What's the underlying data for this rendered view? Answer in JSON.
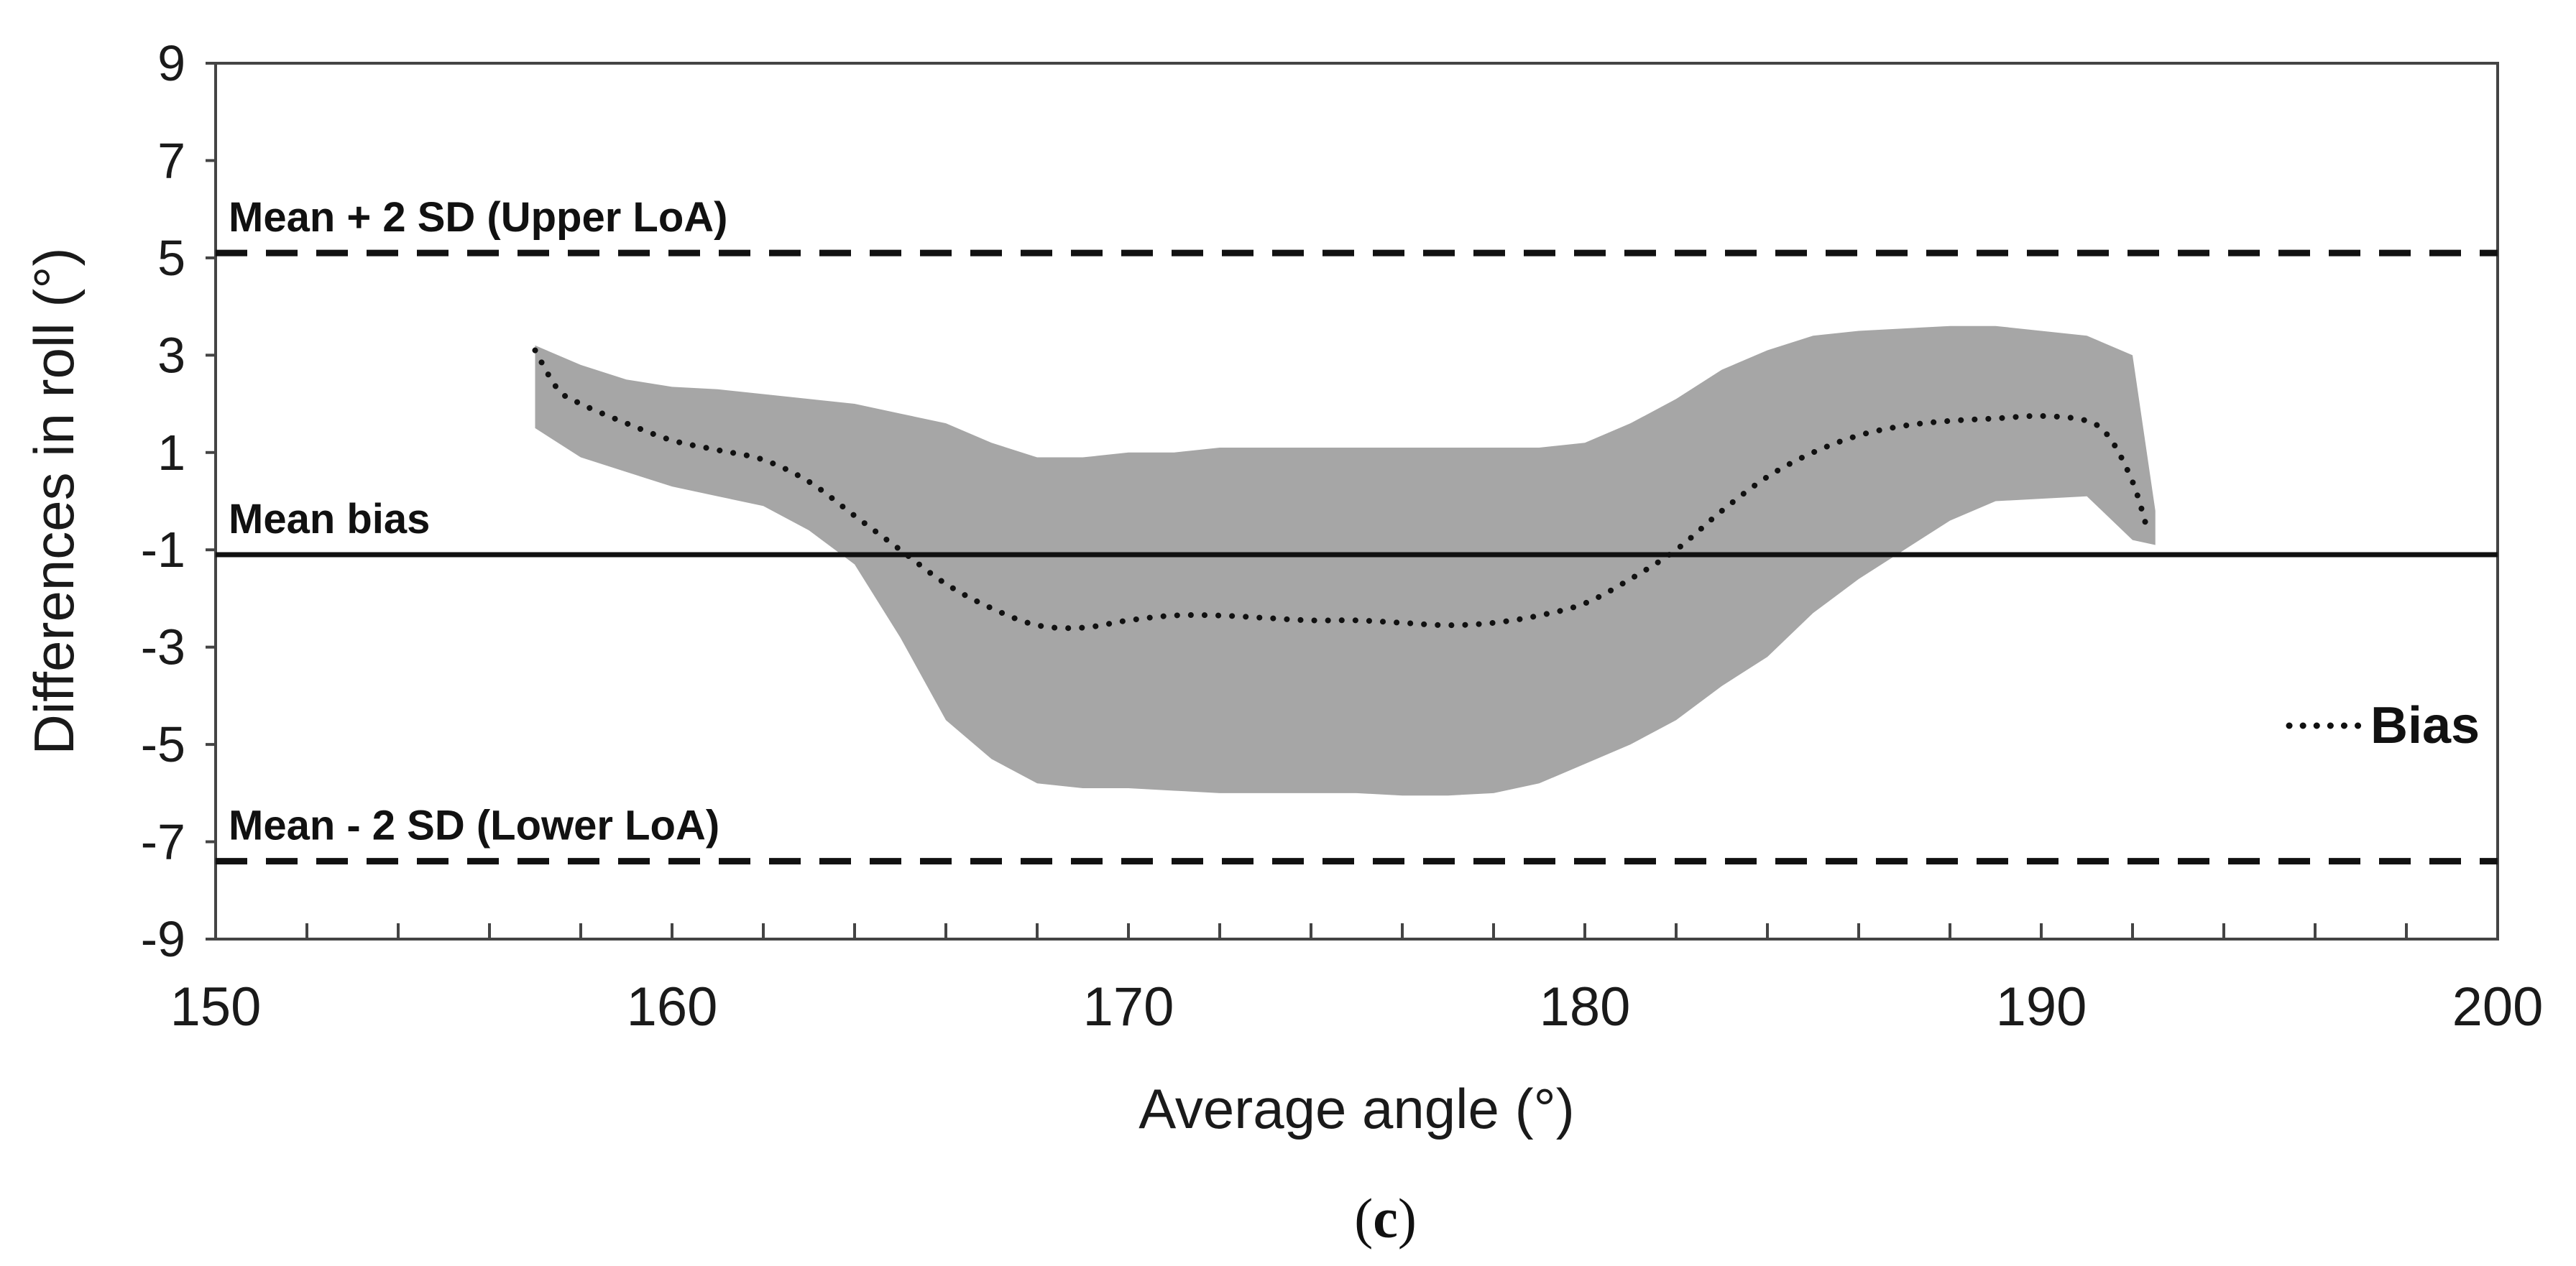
{
  "chart_data": {
    "type": "line",
    "title": "",
    "xlabel": "Average angle (°)",
    "ylabel": "Differences in roll (°)",
    "xlim": [
      150,
      200
    ],
    "ylim": [
      -9,
      9
    ],
    "x_ticks": [
      150,
      160,
      170,
      180,
      190,
      200
    ],
    "x_minor_step": 2,
    "y_ticks": [
      9,
      7,
      5,
      3,
      1,
      -1,
      -3,
      -5,
      -7,
      -9
    ],
    "grid": false,
    "reference_lines": [
      {
        "name": "upper-loa",
        "label": "Mean + 2 SD (Upper LoA)",
        "value": 5.1,
        "style": "dashed"
      },
      {
        "name": "mean-bias",
        "label": "Mean bias",
        "value": -1.1,
        "style": "solid"
      },
      {
        "name": "lower-loa",
        "label": "Mean - 2 SD (Lower LoA)",
        "value": -7.4,
        "style": "dashed"
      }
    ],
    "band": {
      "description": "confidence band around bias",
      "color": "#a6a6a6",
      "x": [
        157,
        158,
        159,
        160,
        161,
        162,
        163,
        164,
        165,
        166,
        167,
        168,
        169,
        170,
        171,
        172,
        173,
        174,
        175,
        176,
        177,
        178,
        179,
        180,
        181,
        182,
        183,
        184,
        185,
        186,
        187,
        188,
        189,
        190,
        191,
        192,
        192.5
      ],
      "upper": [
        3.2,
        2.8,
        2.5,
        2.35,
        2.3,
        2.2,
        2.1,
        2.0,
        1.8,
        1.6,
        1.2,
        0.9,
        0.9,
        1.0,
        1.0,
        1.1,
        1.1,
        1.1,
        1.1,
        1.1,
        1.1,
        1.1,
        1.1,
        1.2,
        1.6,
        2.1,
        2.7,
        3.1,
        3.4,
        3.5,
        3.55,
        3.6,
        3.6,
        3.5,
        3.4,
        3.0,
        -0.2
      ],
      "lower": [
        1.5,
        0.9,
        0.6,
        0.3,
        0.1,
        -0.1,
        -0.6,
        -1.3,
        -2.8,
        -4.5,
        -5.3,
        -5.8,
        -5.9,
        -5.9,
        -5.95,
        -6.0,
        -6.0,
        -6.0,
        -6.0,
        -6.05,
        -6.05,
        -6.0,
        -5.8,
        -5.4,
        -5.0,
        -4.5,
        -3.8,
        -3.2,
        -2.3,
        -1.6,
        -1.0,
        -0.4,
        0.0,
        0.05,
        0.1,
        -0.8,
        -0.9
      ]
    },
    "series": [
      {
        "name": "Bias",
        "style": "dotted",
        "x": [
          157,
          157.5,
          158,
          159,
          160,
          161,
          162,
          163,
          164,
          165,
          166,
          167,
          168,
          169,
          170,
          171,
          172,
          173,
          174,
          175,
          176,
          177,
          178,
          179,
          180,
          181,
          182,
          183,
          184,
          185,
          186,
          187,
          188,
          189,
          190,
          191,
          191.5,
          192,
          192.3
        ],
        "values": [
          3.1,
          2.3,
          2.0,
          1.6,
          1.25,
          1.05,
          0.85,
          0.4,
          -0.3,
          -1.0,
          -1.7,
          -2.2,
          -2.55,
          -2.6,
          -2.45,
          -2.35,
          -2.35,
          -2.4,
          -2.45,
          -2.45,
          -2.5,
          -2.55,
          -2.5,
          -2.35,
          -2.1,
          -1.6,
          -1.0,
          -0.2,
          0.5,
          1.0,
          1.35,
          1.55,
          1.65,
          1.7,
          1.75,
          1.65,
          1.3,
          0.4,
          -0.5
        ]
      }
    ],
    "legend": {
      "entries": [
        "Bias"
      ],
      "placement": "right"
    },
    "caption": {
      "open": "(",
      "letter": "c",
      "close": ")"
    },
    "colors": {
      "band": "#a6a6a6",
      "lines": "#111111",
      "axis": "#444444"
    }
  }
}
